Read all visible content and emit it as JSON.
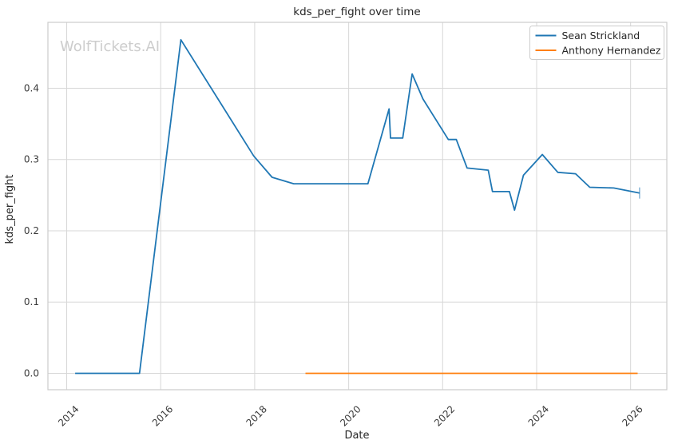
{
  "watermark": "WolfTickets.AI",
  "chart_data": {
    "type": "line",
    "title": "kds_per_fight over time",
    "xlabel": "Date",
    "ylabel": "kds_per_fight",
    "grid": true,
    "legend_position": "upper right",
    "xlim": [
      2013.6,
      2026.77
    ],
    "ylim": [
      -0.023,
      0.4924
    ],
    "x_ticks": [
      2014,
      2016,
      2018,
      2020,
      2022,
      2024,
      2026
    ],
    "x_tick_labels": [
      "2014",
      "2016",
      "2018",
      "2020",
      "2022",
      "2024",
      "2026"
    ],
    "y_ticks": [
      0.0,
      0.1,
      0.2,
      0.3,
      0.4
    ],
    "y_tick_labels": [
      "0.0",
      "0.1",
      "0.2",
      "0.3",
      "0.4"
    ],
    "series": [
      {
        "name": "Sean Strickland",
        "color": "#1f77b4",
        "end_marker": true,
        "x": [
          2014.18,
          2015.55,
          2016.43,
          2017.98,
          2018.37,
          2018.83,
          2020.41,
          2020.86,
          2020.89,
          2021.15,
          2021.35,
          2021.58,
          2022.12,
          2022.29,
          2022.52,
          2022.97,
          2023.06,
          2023.42,
          2023.53,
          2023.72,
          2024.12,
          2024.45,
          2024.83,
          2025.13,
          2025.64,
          2026.19
        ],
        "y": [
          0.0,
          0.0,
          0.468,
          0.305,
          0.275,
          0.266,
          0.266,
          0.371,
          0.33,
          0.33,
          0.42,
          0.385,
          0.328,
          0.328,
          0.288,
          0.285,
          0.255,
          0.255,
          0.229,
          0.278,
          0.307,
          0.282,
          0.28,
          0.261,
          0.26,
          0.253
        ]
      },
      {
        "name": "Anthony Hernandez",
        "color": "#ff7f0e",
        "end_marker": false,
        "x": [
          2019.08,
          2026.15
        ],
        "y": [
          0.0,
          0.0
        ]
      }
    ],
    "colors": {
      "grid": "#d7d7d7",
      "spine": "#cbcbcb",
      "text": "#262626",
      "tick_text": "#3b3b3b",
      "watermark": "#cdcdcd",
      "legend_border": "#cccccc"
    }
  }
}
